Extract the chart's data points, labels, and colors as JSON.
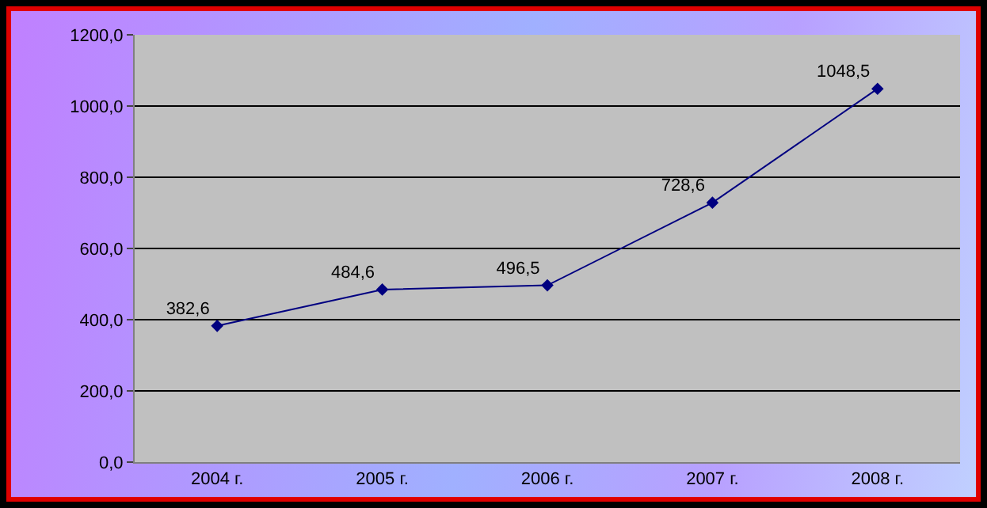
{
  "chart_data": {
    "type": "line",
    "categories": [
      "2004 г.",
      "2005 г.",
      "2006 г.",
      "2007 г.",
      "2008 г."
    ],
    "series": [
      {
        "color": "#000080",
        "values": [
          382.6,
          484.6,
          496.5,
          728.6,
          1048.5
        ],
        "value_labels": [
          "382,6",
          "484,6",
          "496,5",
          "728,6",
          "1048,5"
        ]
      }
    ],
    "ylim": [
      0,
      1200
    ],
    "yticks": [
      {
        "value": 0,
        "label": "0,0"
      },
      {
        "value": 200,
        "label": "200,0"
      },
      {
        "value": 400,
        "label": "400,0"
      },
      {
        "value": 600,
        "label": "600,0"
      },
      {
        "value": 800,
        "label": "800,0"
      },
      {
        "value": 1000,
        "label": "1000,0"
      },
      {
        "value": 1200,
        "label": "1200,0"
      }
    ],
    "grid": "y",
    "marker": "diamond",
    "line_style": "solid"
  }
}
